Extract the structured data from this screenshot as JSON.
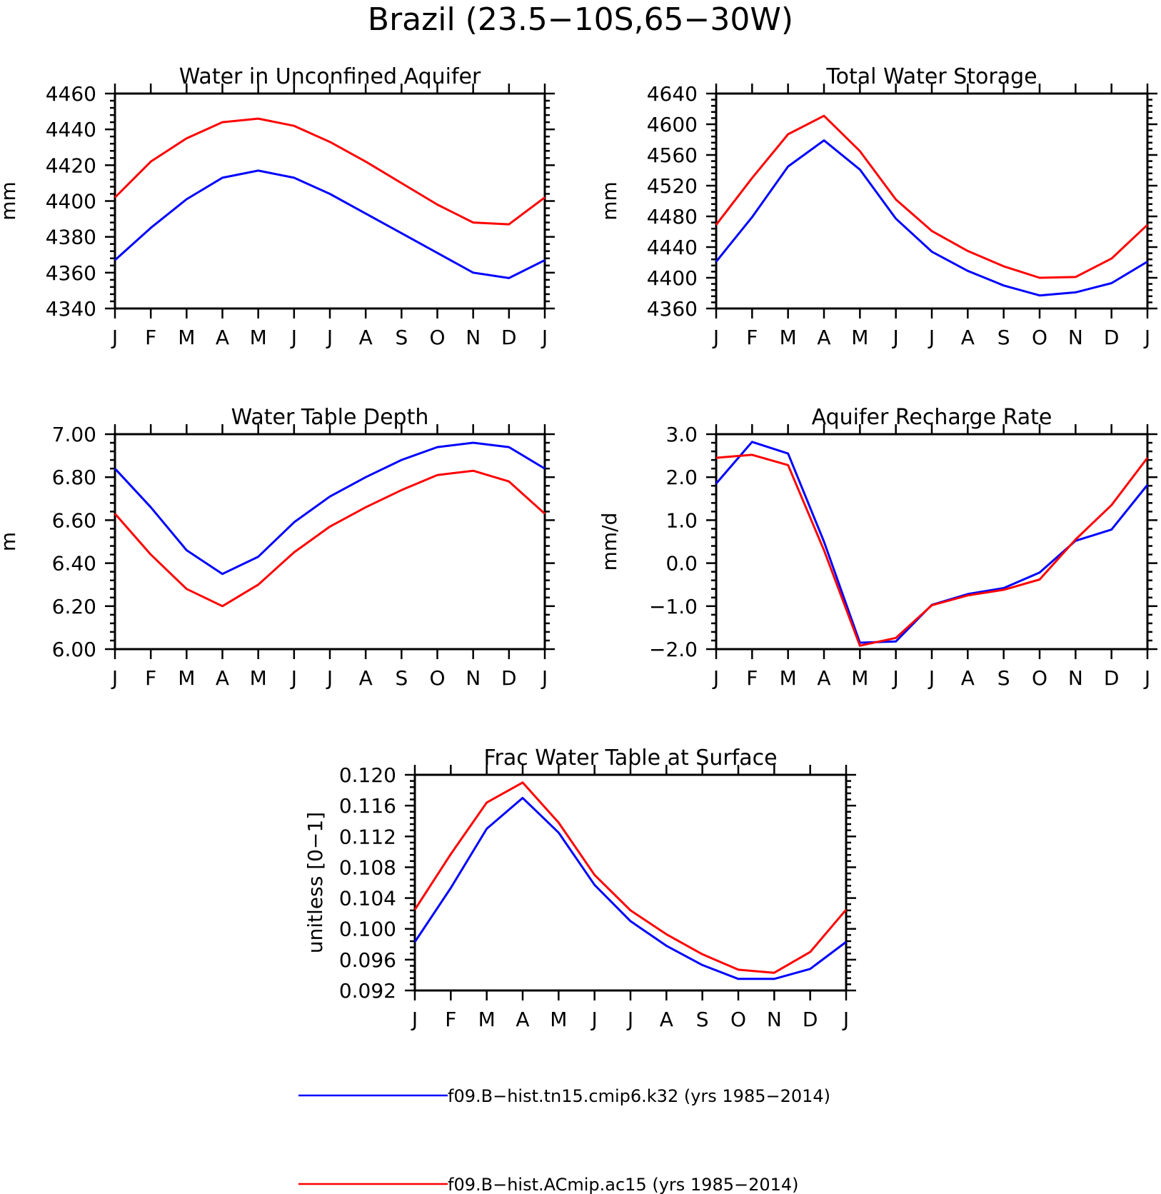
{
  "figure_title": "Brazil (23.5−10S,65−30W)",
  "colors": {
    "series_0": "#0000ff",
    "series_1": "#ff0000",
    "axis": "#000000",
    "background": "#ffffff"
  },
  "legend": [
    {
      "label": "f09.B−hist.tn15.cmip6.k32 (yrs 1985−2014)",
      "color": "#0000ff"
    },
    {
      "label": "f09.B−hist.ACmip.ac15 (yrs 1985−2014)",
      "color": "#ff0000"
    }
  ],
  "chart_data": [
    {
      "type": "line",
      "title": "Water in Unconfined Aquifer",
      "ylabel": "mm",
      "xlabel": "",
      "categories": [
        "J",
        "F",
        "M",
        "A",
        "M",
        "J",
        "J",
        "A",
        "S",
        "O",
        "N",
        "D",
        "J"
      ],
      "ylim": [
        4340,
        4460
      ],
      "yticks": [
        "4340",
        "4360",
        "4380",
        "4400",
        "4420",
        "4440",
        "4460"
      ],
      "grid": false,
      "series": [
        {
          "name": "f09.B−hist.tn15.cmip6.k32 (yrs 1985−2014)",
          "color": "#0000ff",
          "values": [
            4367,
            4385,
            4401,
            4413,
            4417,
            4413,
            4404,
            4393,
            4382,
            4371,
            4360,
            4357,
            4367
          ]
        },
        {
          "name": "f09.B−hist.ACmip.ac15 (yrs 1985−2014)",
          "color": "#ff0000",
          "values": [
            4402,
            4422,
            4435,
            4444,
            4446,
            4442,
            4433,
            4422,
            4410,
            4398,
            4388,
            4387,
            4402
          ]
        }
      ]
    },
    {
      "type": "line",
      "title": "Total Water Storage",
      "ylabel": "mm",
      "xlabel": "",
      "categories": [
        "J",
        "F",
        "M",
        "A",
        "M",
        "J",
        "J",
        "A",
        "S",
        "O",
        "N",
        "D",
        "J"
      ],
      "ylim": [
        4360,
        4640
      ],
      "yticks": [
        "4360",
        "4400",
        "4440",
        "4480",
        "4520",
        "4560",
        "4600",
        "4640"
      ],
      "grid": false,
      "series": [
        {
          "name": "f09.B−hist.tn15.cmip6.k32 (yrs 1985−2014)",
          "color": "#0000ff",
          "values": [
            4421,
            4479,
            4545,
            4579,
            4541,
            4477,
            4434,
            4409,
            4390,
            4377,
            4381,
            4393,
            4421
          ]
        },
        {
          "name": "f09.B−hist.ACmip.ac15 (yrs 1985−2014)",
          "color": "#ff0000",
          "values": [
            4469,
            4530,
            4587,
            4611,
            4565,
            4502,
            4461,
            4435,
            4415,
            4400,
            4401,
            4425,
            4469
          ]
        }
      ]
    },
    {
      "type": "line",
      "title": "Water Table Depth",
      "ylabel": "m",
      "xlabel": "",
      "categories": [
        "J",
        "F",
        "M",
        "A",
        "M",
        "J",
        "J",
        "A",
        "S",
        "O",
        "N",
        "D",
        "J"
      ],
      "ylim": [
        6.0,
        7.0
      ],
      "yticks": [
        "6.00",
        "6.20",
        "6.40",
        "6.60",
        "6.80",
        "7.00"
      ],
      "grid": false,
      "series": [
        {
          "name": "f09.B−hist.tn15.cmip6.k32 (yrs 1985−2014)",
          "color": "#0000ff",
          "values": [
            6.84,
            6.66,
            6.46,
            6.35,
            6.43,
            6.59,
            6.71,
            6.8,
            6.88,
            6.94,
            6.96,
            6.94,
            6.84
          ]
        },
        {
          "name": "f09.B−hist.ACmip.ac15 (yrs 1985−2014)",
          "color": "#ff0000",
          "values": [
            6.63,
            6.44,
            6.28,
            6.2,
            6.3,
            6.45,
            6.57,
            6.66,
            6.74,
            6.81,
            6.83,
            6.78,
            6.63
          ]
        }
      ]
    },
    {
      "type": "line",
      "title": "Aquifer Recharge Rate",
      "ylabel": "mm/d",
      "xlabel": "",
      "categories": [
        "J",
        "F",
        "M",
        "A",
        "M",
        "J",
        "J",
        "A",
        "S",
        "O",
        "N",
        "D",
        "J"
      ],
      "ylim": [
        -2.0,
        3.0
      ],
      "yticks": [
        "−2.0",
        "−1.0",
        "0.0",
        "1.0",
        "2.0",
        "3.0"
      ],
      "grid": false,
      "series": [
        {
          "name": "f09.B−hist.tn15.cmip6.k32 (yrs 1985−2014)",
          "color": "#0000ff",
          "values": [
            1.85,
            2.82,
            2.55,
            0.5,
            -1.85,
            -1.82,
            -0.97,
            -0.72,
            -0.58,
            -0.22,
            0.52,
            0.78,
            1.82
          ]
        },
        {
          "name": "f09.B−hist.ACmip.ac15 (yrs 1985−2014)",
          "color": "#ff0000",
          "values": [
            2.45,
            2.52,
            2.28,
            0.3,
            -1.92,
            -1.74,
            -0.98,
            -0.75,
            -0.62,
            -0.38,
            0.55,
            1.35,
            2.45
          ]
        }
      ]
    },
    {
      "type": "line",
      "title": "Frac Water Table at Surface",
      "ylabel": "unitless [0−1]",
      "xlabel": "",
      "categories": [
        "J",
        "F",
        "M",
        "A",
        "M",
        "J",
        "J",
        "A",
        "S",
        "O",
        "N",
        "D",
        "J"
      ],
      "ylim": [
        0.092,
        0.12
      ],
      "yticks": [
        "0.092",
        "0.096",
        "0.100",
        "0.104",
        "0.108",
        "0.112",
        "0.116",
        "0.120"
      ],
      "grid": false,
      "series": [
        {
          "name": "f09.B−hist.tn15.cmip6.k32 (yrs 1985−2014)",
          "color": "#0000ff",
          "values": [
            0.0983,
            0.1053,
            0.113,
            0.117,
            0.1125,
            0.1057,
            0.101,
            0.0978,
            0.0953,
            0.0935,
            0.0935,
            0.0948,
            0.0983
          ]
        },
        {
          "name": "f09.B−hist.ACmip.ac15 (yrs 1985−2014)",
          "color": "#ff0000",
          "values": [
            0.1025,
            0.1097,
            0.1164,
            0.119,
            0.1138,
            0.107,
            0.1024,
            0.0993,
            0.0967,
            0.0947,
            0.0943,
            0.097,
            0.1025
          ]
        }
      ]
    }
  ]
}
